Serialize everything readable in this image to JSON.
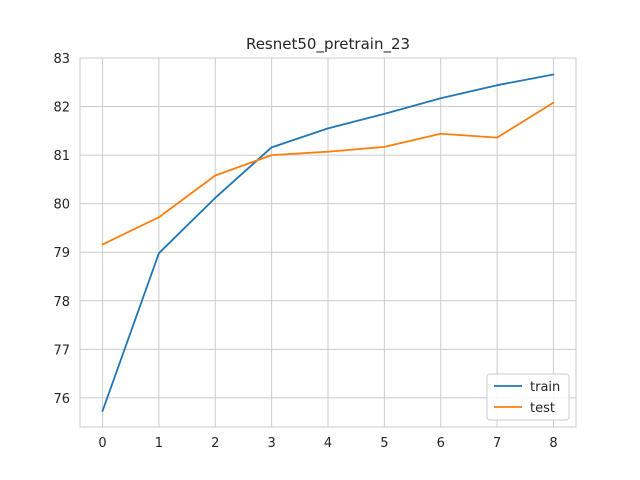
{
  "chart_data": {
    "type": "line",
    "title": "Resnet50_pretrain_23",
    "xlabel": "",
    "ylabel": "",
    "x": [
      0,
      1,
      2,
      3,
      4,
      5,
      6,
      7,
      8
    ],
    "xticks": [
      "0",
      "1",
      "2",
      "3",
      "4",
      "5",
      "6",
      "7",
      "8"
    ],
    "yticks": [
      "76",
      "77",
      "78",
      "79",
      "80",
      "81",
      "82",
      "83"
    ],
    "xlim": [
      -0.4,
      8.4
    ],
    "ylim": [
      75.4,
      83
    ],
    "grid": true,
    "legend_position": "lower-right",
    "series": [
      {
        "name": "train",
        "color": "#1f77b4",
        "values": [
          75.73,
          78.98,
          80.12,
          81.16,
          81.55,
          81.85,
          82.17,
          82.44,
          82.66
        ]
      },
      {
        "name": "test",
        "color": "#ff7f0e",
        "values": [
          79.16,
          79.72,
          80.58,
          81.0,
          81.07,
          81.17,
          81.44,
          81.36,
          82.08
        ]
      }
    ]
  }
}
